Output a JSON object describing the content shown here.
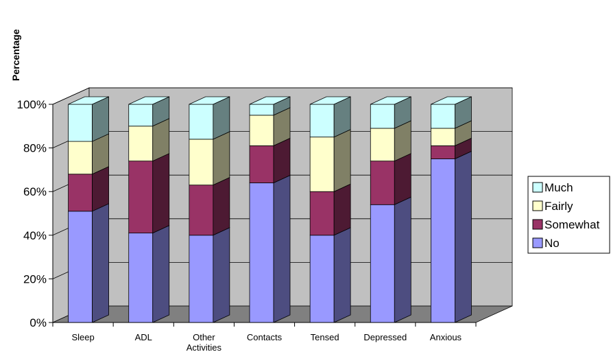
{
  "chart_data": {
    "type": "bar",
    "stacked": true,
    "three_d": true,
    "ylabel": "Percentage",
    "xlabel": "",
    "ylim": [
      0,
      100
    ],
    "y_ticks": [
      "0%",
      "20%",
      "40%",
      "60%",
      "80%",
      "100%"
    ],
    "categories": [
      "Sleep",
      "ADL",
      "Other Activities",
      "Contacts",
      "Tensed",
      "Depressed",
      "Anxious"
    ],
    "series": [
      {
        "name": "No",
        "values": [
          51,
          41,
          40,
          64,
          40,
          54,
          75
        ],
        "color": "#9999ff",
        "side_color": "#4d4d80"
      },
      {
        "name": "Somewhat",
        "values": [
          17,
          33,
          23,
          17,
          20,
          20,
          6
        ],
        "color": "#993366",
        "side_color": "#4d1a33"
      },
      {
        "name": "Fairly",
        "values": [
          15,
          16,
          21,
          14,
          25,
          15,
          8
        ],
        "color": "#ffffcc",
        "side_color": "#808066"
      },
      {
        "name": "Much",
        "values": [
          17,
          10,
          16,
          5,
          15,
          11,
          11
        ],
        "color": "#ccffff",
        "side_color": "#668080"
      }
    ],
    "legend_order": [
      "Much",
      "Fairly",
      "Somewhat",
      "No"
    ],
    "legend_position": "right",
    "grid": true,
    "colors": {
      "wall": "#c0c0c0",
      "floor": "#808080",
      "grid": "#000000"
    }
  }
}
